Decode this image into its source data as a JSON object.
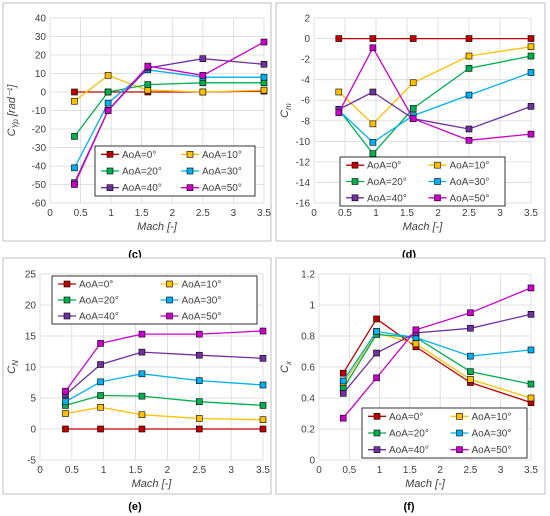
{
  "panels_colors": {
    "AoA=0°": "#c00000",
    "AoA=10°": "#ffc000",
    "AoA=20°": "#00b050",
    "AoA=30°": "#00b0f0",
    "AoA=40°": "#7030a0",
    "AoA=50°": "#cc00cc"
  },
  "chart_data": [
    {
      "panel": "(c)",
      "type": "line",
      "xlabel": "Mach [-]",
      "ylabel": "C_Yp [rad⁻¹]",
      "xlim": [
        0,
        3.5
      ],
      "ylim": [
        -60,
        40
      ],
      "xticks": [
        0,
        0.5,
        1,
        1.5,
        2,
        2.5,
        3,
        3.5
      ],
      "yticks": [
        -60,
        -50,
        -40,
        -30,
        -20,
        -10,
        0,
        10,
        20,
        30,
        40
      ],
      "grid": true,
      "markers": true,
      "legend": "bottom-center, inside",
      "x": [
        0.4,
        0.95,
        1.6,
        2.5,
        3.5
      ],
      "series": [
        {
          "name": "AoA=0°",
          "values": [
            0,
            0,
            0,
            0,
            0.5
          ]
        },
        {
          "name": "AoA=10°",
          "values": [
            -5,
            9,
            1,
            0,
            1
          ]
        },
        {
          "name": "AoA=20°",
          "values": [
            -24,
            0,
            4,
            5,
            5
          ]
        },
        {
          "name": "AoA=30°",
          "values": [
            -41,
            -6,
            12,
            8,
            8
          ]
        },
        {
          "name": "AoA=40°",
          "values": [
            -49,
            -10,
            13,
            18,
            15
          ]
        },
        {
          "name": "AoA=50°",
          "values": [
            -50,
            -10,
            14,
            9,
            27
          ]
        }
      ]
    },
    {
      "panel": "(d)",
      "type": "line",
      "xlabel": "Mach [-]",
      "ylabel": "C_m",
      "xlim": [
        0,
        3.5
      ],
      "ylim": [
        -16,
        2
      ],
      "xticks": [
        0,
        0.5,
        1,
        1.5,
        2,
        2.5,
        3,
        3.5
      ],
      "yticks": [
        -16,
        -14,
        -12,
        -10,
        -8,
        -6,
        -4,
        -2,
        0,
        2
      ],
      "grid": true,
      "markers": true,
      "legend": "bottom-center, inside",
      "x": [
        0.4,
        0.95,
        1.6,
        2.5,
        3.5
      ],
      "series": [
        {
          "name": "AoA=0°",
          "values": [
            0,
            0,
            0,
            0,
            0
          ]
        },
        {
          "name": "AoA=10°",
          "values": [
            -5.2,
            -8.3,
            -4.3,
            -1.7,
            -0.8
          ]
        },
        {
          "name": "AoA=20°",
          "values": [
            -6.9,
            -11.2,
            -6.8,
            -2.9,
            -1.7
          ]
        },
        {
          "name": "AoA=30°",
          "values": [
            -7.0,
            -10.1,
            -7.5,
            -5.5,
            -3.3
          ]
        },
        {
          "name": "AoA=40°",
          "values": [
            -6.9,
            -5.2,
            -7.8,
            -8.8,
            -6.6
          ]
        },
        {
          "name": "AoA=50°",
          "values": [
            -7.2,
            -0.9,
            -7.8,
            -9.9,
            -9.3
          ]
        }
      ]
    },
    {
      "panel": "(e)",
      "type": "line",
      "xlabel": "Mach [-]",
      "ylabel": "C_N",
      "xlim": [
        0,
        3.5
      ],
      "ylim": [
        -5,
        25
      ],
      "xticks": [
        0,
        0.5,
        1,
        1.5,
        2,
        2.5,
        3,
        3.5
      ],
      "yticks": [
        -5,
        0,
        5,
        10,
        15,
        20,
        25
      ],
      "grid": true,
      "markers": true,
      "legend": "top-center, inside",
      "x": [
        0.4,
        0.95,
        1.6,
        2.5,
        3.5
      ],
      "series": [
        {
          "name": "AoA=0°",
          "values": [
            0,
            0,
            0,
            0,
            0
          ]
        },
        {
          "name": "AoA=10°",
          "values": [
            2.5,
            3.5,
            2.3,
            1.7,
            1.5
          ]
        },
        {
          "name": "AoA=20°",
          "values": [
            3.8,
            5.4,
            5.3,
            4.4,
            3.8
          ]
        },
        {
          "name": "AoA=30°",
          "values": [
            4.4,
            7.6,
            8.9,
            7.8,
            7.1
          ]
        },
        {
          "name": "AoA=40°",
          "values": [
            5.5,
            10.4,
            12.4,
            11.9,
            11.4
          ]
        },
        {
          "name": "AoA=50°",
          "values": [
            6.1,
            13.8,
            15.3,
            15.3,
            15.8
          ]
        }
      ]
    },
    {
      "panel": "(f)",
      "type": "line",
      "xlabel": "Mach [-]",
      "ylabel": "C_x",
      "xlim": [
        0,
        3.5
      ],
      "ylim": [
        0,
        1.2
      ],
      "xticks": [
        0,
        0.5,
        1,
        1.5,
        2,
        2.5,
        3,
        3.5
      ],
      "yticks": [
        0,
        0.2,
        0.4,
        0.6,
        0.8,
        1,
        1.2
      ],
      "grid": true,
      "markers": true,
      "legend": "bottom-center, inside",
      "x": [
        0.4,
        0.95,
        1.6,
        2.5,
        3.5
      ],
      "series": [
        {
          "name": "AoA=0°",
          "values": [
            0.56,
            0.91,
            0.73,
            0.5,
            0.37
          ]
        },
        {
          "name": "AoA=10°",
          "values": [
            0.49,
            0.82,
            0.75,
            0.52,
            0.4
          ]
        },
        {
          "name": "AoA=20°",
          "values": [
            0.46,
            0.81,
            0.79,
            0.57,
            0.49
          ]
        },
        {
          "name": "AoA=30°",
          "values": [
            0.51,
            0.83,
            0.79,
            0.67,
            0.71
          ]
        },
        {
          "name": "AoA=40°",
          "values": [
            0.43,
            0.69,
            0.82,
            0.85,
            0.94
          ]
        },
        {
          "name": "AoA=50°",
          "values": [
            0.27,
            0.53,
            0.84,
            0.95,
            1.11
          ]
        }
      ]
    }
  ]
}
